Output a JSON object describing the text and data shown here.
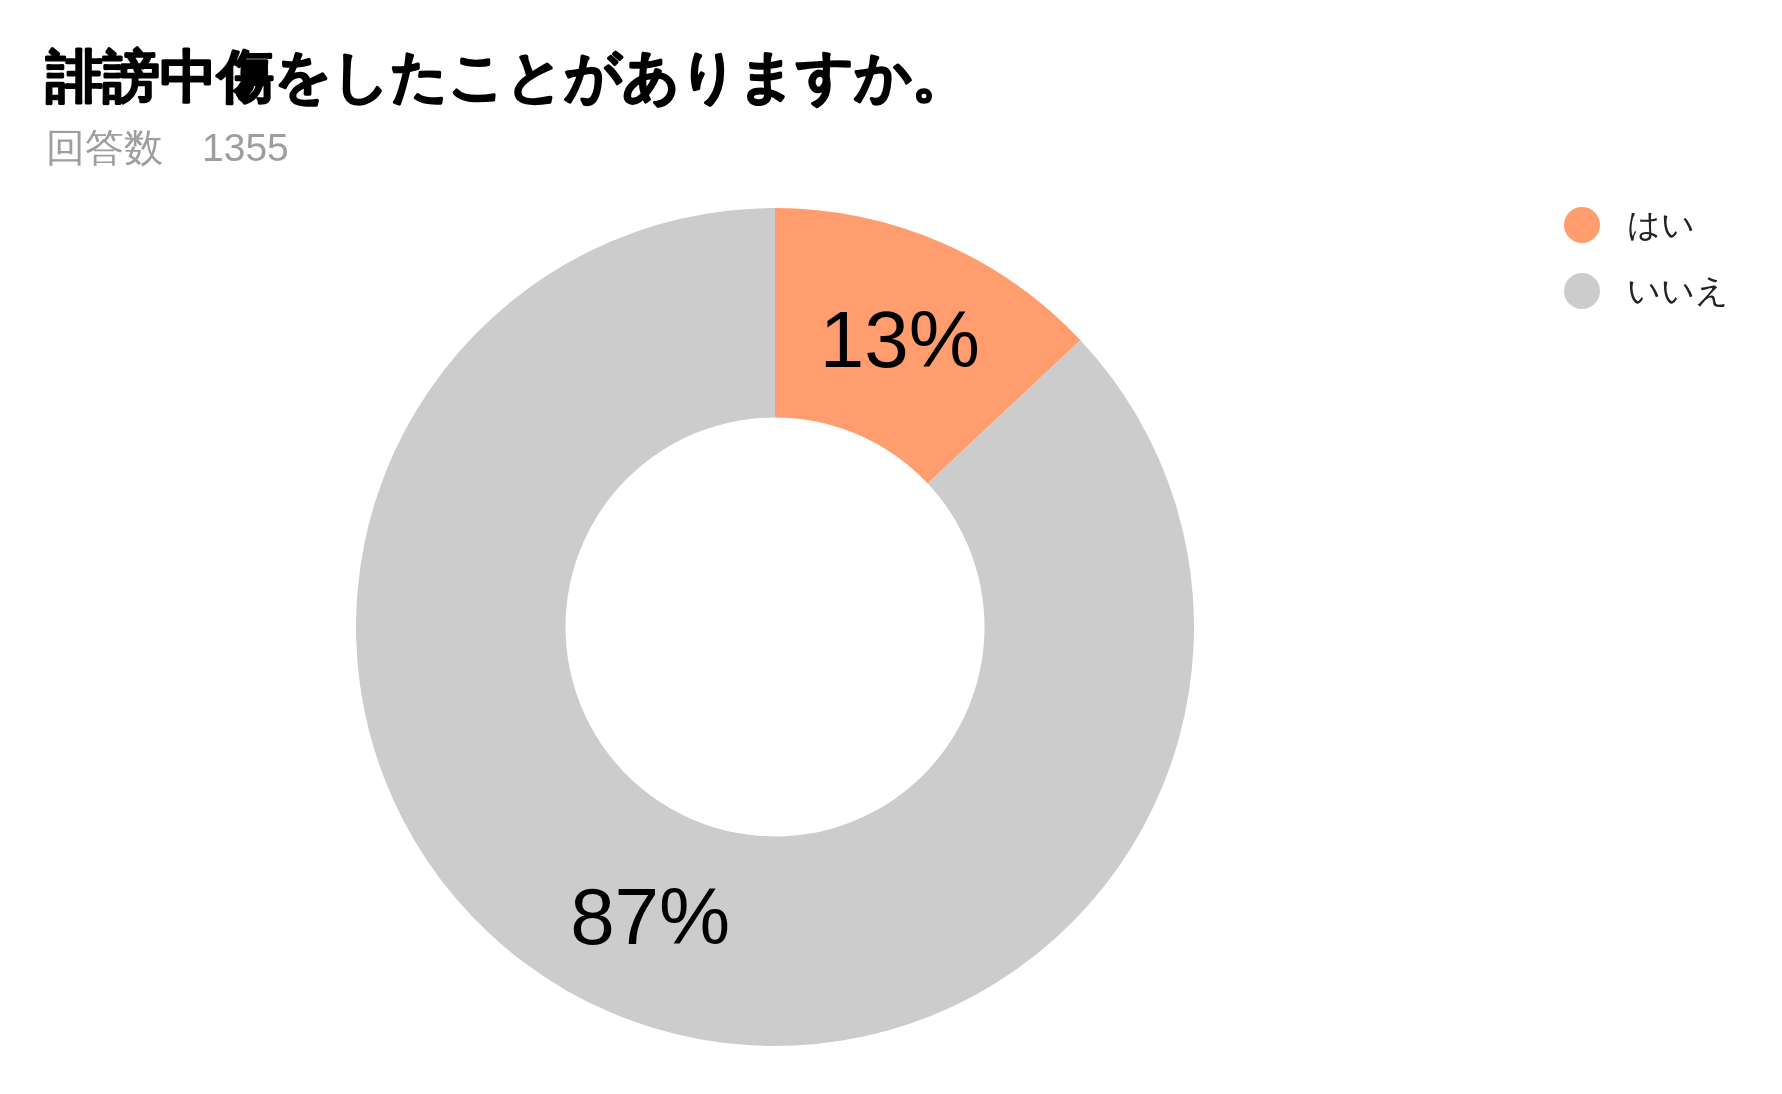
{
  "chart_data": {
    "type": "donut",
    "title": "誹謗中傷をしたことがありますか。",
    "subtitle": "回答数　1355",
    "categories": [
      "はい",
      "いいえ"
    ],
    "values": [
      13,
      87
    ],
    "colors": [
      "#ff9d6f",
      "#cccccc"
    ],
    "value_labels": [
      "13%",
      "87%"
    ],
    "legend": "top right"
  }
}
